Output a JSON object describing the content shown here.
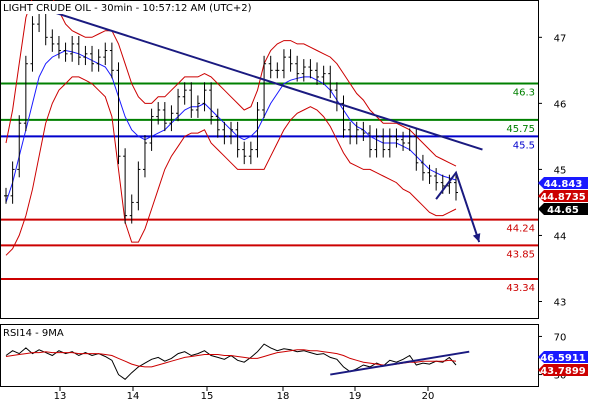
{
  "chart_data": [
    {
      "type": "line",
      "title": "LIGHT CRUDE OIL - 30min - 10:57:12 AM (UTC+2)",
      "x_ticks": [
        "13",
        "14",
        "15",
        "18",
        "19",
        "20"
      ],
      "y_ticks": [
        47,
        46,
        45,
        44,
        43
      ],
      "ylim": [
        42.75,
        47.55
      ],
      "series": [
        {
          "kind": "price",
          "color": "#000000",
          "values": [
            44.6,
            45.0,
            45.7,
            46.6,
            47.2,
            47.4,
            47.0,
            46.9,
            46.8,
            46.75,
            46.9,
            46.7,
            46.75,
            46.6,
            46.7,
            46.8,
            46.5,
            45.2,
            44.3,
            44.5,
            45.0,
            45.4,
            45.8,
            45.9,
            45.7,
            45.85,
            46.1,
            46.2,
            45.9,
            46.0,
            46.2,
            45.8,
            45.6,
            45.5,
            45.6,
            45.3,
            45.2,
            45.3,
            45.9,
            46.6,
            46.5,
            46.5,
            46.7,
            46.6,
            46.45,
            46.55,
            46.5,
            46.4,
            46.45,
            46.2,
            46.0,
            45.6,
            45.5,
            45.6,
            45.55,
            45.3,
            45.5,
            45.3,
            45.5,
            45.45,
            45.4,
            45.5,
            45.1,
            44.95,
            44.9,
            44.8,
            44.75,
            44.8,
            44.65
          ]
        },
        {
          "kind": "moving-average",
          "color": "#1a1aff",
          "values": [
            44.5,
            44.8,
            45.2,
            45.6,
            46.0,
            46.4,
            46.6,
            46.7,
            46.75,
            46.8,
            46.78,
            46.75,
            46.7,
            46.65,
            46.6,
            46.55,
            46.4,
            46.1,
            45.8,
            45.6,
            45.5,
            45.45,
            45.5,
            45.55,
            45.6,
            45.7,
            45.8,
            45.9,
            45.95,
            45.95,
            46.0,
            45.9,
            45.8,
            45.7,
            45.6,
            45.5,
            45.45,
            45.5,
            45.6,
            45.8,
            46.0,
            46.15,
            46.3,
            46.35,
            46.38,
            46.4,
            46.4,
            46.35,
            46.3,
            46.2,
            46.05,
            45.9,
            45.75,
            45.65,
            45.6,
            45.5,
            45.45,
            45.4,
            45.4,
            45.4,
            45.35,
            45.3,
            45.2,
            45.1,
            45.0,
            44.95,
            44.9,
            44.87,
            44.84
          ]
        },
        {
          "kind": "bollinger-upper",
          "color": "#cc0000",
          "values": [
            45.4,
            45.9,
            46.6,
            47.3,
            47.6,
            47.7,
            47.7,
            47.6,
            47.4,
            47.2,
            47.1,
            47.05,
            47.0,
            47.0,
            47.05,
            47.1,
            47.1,
            46.9,
            46.6,
            46.3,
            46.1,
            46.0,
            46.0,
            46.1,
            46.1,
            46.2,
            46.3,
            46.4,
            46.4,
            46.4,
            46.45,
            46.4,
            46.3,
            46.2,
            46.1,
            46.0,
            45.9,
            45.95,
            46.2,
            46.6,
            46.8,
            46.9,
            46.95,
            46.95,
            46.9,
            46.9,
            46.85,
            46.8,
            46.75,
            46.7,
            46.6,
            46.45,
            46.3,
            46.15,
            46.05,
            45.9,
            45.8,
            45.7,
            45.7,
            45.7,
            45.65,
            45.6,
            45.5,
            45.4,
            45.3,
            45.2,
            45.15,
            45.1,
            45.05
          ]
        },
        {
          "kind": "bollinger-lower",
          "color": "#cc0000",
          "values": [
            43.7,
            43.8,
            44.0,
            44.3,
            44.7,
            45.2,
            45.7,
            46.0,
            46.2,
            46.3,
            46.4,
            46.4,
            46.35,
            46.3,
            46.2,
            46.1,
            45.8,
            45.0,
            44.2,
            43.9,
            43.9,
            44.1,
            44.4,
            44.7,
            45.0,
            45.2,
            45.35,
            45.5,
            45.55,
            45.55,
            45.6,
            45.4,
            45.3,
            45.2,
            45.1,
            45.0,
            45.0,
            45.0,
            45.0,
            45.0,
            45.2,
            45.4,
            45.6,
            45.75,
            45.85,
            45.9,
            45.95,
            45.9,
            45.8,
            45.65,
            45.45,
            45.25,
            45.1,
            45.05,
            45.0,
            45.0,
            44.95,
            44.9,
            44.85,
            44.8,
            44.7,
            44.65,
            44.55,
            44.45,
            44.35,
            44.3,
            44.3,
            44.35,
            44.4
          ]
        }
      ],
      "levels": [
        {
          "value": 46.3,
          "label": "46.3",
          "color": "#008000"
        },
        {
          "value": 45.75,
          "label": "45.75",
          "color": "#008000"
        },
        {
          "value": 45.5,
          "label": "45.5",
          "color": "#0000cc"
        },
        {
          "value": 44.24,
          "label": "44.24",
          "color": "#cc0000"
        },
        {
          "value": 43.85,
          "label": "43.85",
          "color": "#cc0000"
        },
        {
          "value": 43.34,
          "label": "43.34",
          "color": "#cc0000"
        }
      ],
      "trendline": {
        "from_index": 5,
        "from_value": 47.45,
        "to_index": 72,
        "to_value": 45.3,
        "color": "#1a1a80"
      },
      "projection_arrow": {
        "points": [
          [
            65,
            44.55
          ],
          [
            68,
            44.95
          ],
          [
            71.5,
            43.9
          ]
        ],
        "color": "#1a1a80"
      },
      "value_boxes": [
        {
          "label": "44.843",
          "bg": "#1a1aff",
          "fg": "#ffffff"
        },
        {
          "label": "44.8735",
          "bg": "#cc0000",
          "fg": "#ffffff"
        },
        {
          "label": "44.65",
          "bg": "#000000",
          "fg": "#ffffff"
        }
      ]
    },
    {
      "type": "line",
      "title": "RSI14 - 9MA",
      "y_ticks": [
        70,
        30
      ],
      "ylim": [
        18,
        82
      ],
      "series": [
        {
          "kind": "rsi",
          "color": "#000000",
          "values": [
            50,
            55,
            52,
            58,
            52,
            56,
            53,
            50,
            55,
            52,
            54,
            50,
            53,
            50,
            52,
            49,
            45,
            30,
            25,
            32,
            38,
            42,
            46,
            48,
            44,
            47,
            52,
            54,
            50,
            52,
            55,
            50,
            48,
            46,
            50,
            45,
            43,
            48,
            54,
            62,
            58,
            55,
            57,
            56,
            54,
            55,
            53,
            51,
            52,
            48,
            46,
            38,
            33,
            36,
            40,
            38,
            42,
            39,
            45,
            43,
            46,
            50,
            40,
            42,
            41,
            44,
            43,
            48,
            40
          ]
        },
        {
          "kind": "rsi-ma",
          "color": "#cc0000",
          "values": [
            49,
            50,
            51,
            52,
            53,
            53,
            54,
            53,
            53,
            53,
            53,
            52,
            52,
            52,
            52,
            51,
            50,
            47,
            44,
            41,
            39,
            38,
            38,
            40,
            42,
            44,
            46,
            48,
            49,
            50,
            51,
            51,
            51,
            50,
            50,
            49,
            48,
            47,
            47,
            49,
            51,
            53,
            54,
            55,
            56,
            56,
            55,
            55,
            54,
            53,
            52,
            50,
            47,
            45,
            43,
            42,
            41,
            40,
            40,
            41,
            42,
            43,
            43,
            44,
            44,
            44,
            44,
            45,
            44
          ]
        }
      ],
      "trendline": {
        "from_index": 49,
        "from_value": 30,
        "to_index": 70,
        "to_value": 54,
        "color": "#1a1a80"
      },
      "value_boxes": [
        {
          "label": "46.5911",
          "bg": "#1a1aff",
          "fg": "#ffffff"
        },
        {
          "label": "43.7899",
          "bg": "#cc0000",
          "fg": "#ffffff"
        }
      ]
    }
  ]
}
